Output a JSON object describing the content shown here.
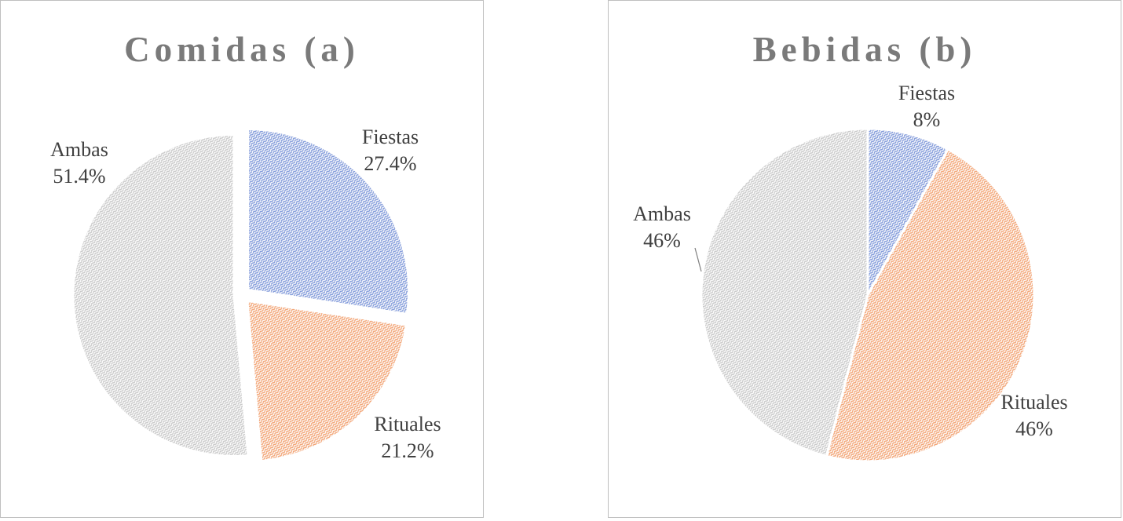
{
  "colors": {
    "fiestas": "#7f98d9",
    "rituales": "#f2a272",
    "ambas": "#c8c8c8",
    "title": "#7a7a7a",
    "label": "#404040"
  },
  "chart_data": [
    {
      "type": "pie",
      "title": "Comidas (a)",
      "categories": [
        "Fiestas",
        "Rituales",
        "Ambas"
      ],
      "values": [
        27.4,
        21.2,
        51.4
      ],
      "value_labels": [
        "27.4%",
        "21.2%",
        "51.4%"
      ],
      "exploded": true
    },
    {
      "type": "pie",
      "title": "Bebidas (b)",
      "categories": [
        "Fiestas",
        "Rituales",
        "Ambas"
      ],
      "values": [
        8,
        46,
        46
      ],
      "value_labels": [
        "8%",
        "46%",
        "46%"
      ],
      "exploded": false
    }
  ]
}
